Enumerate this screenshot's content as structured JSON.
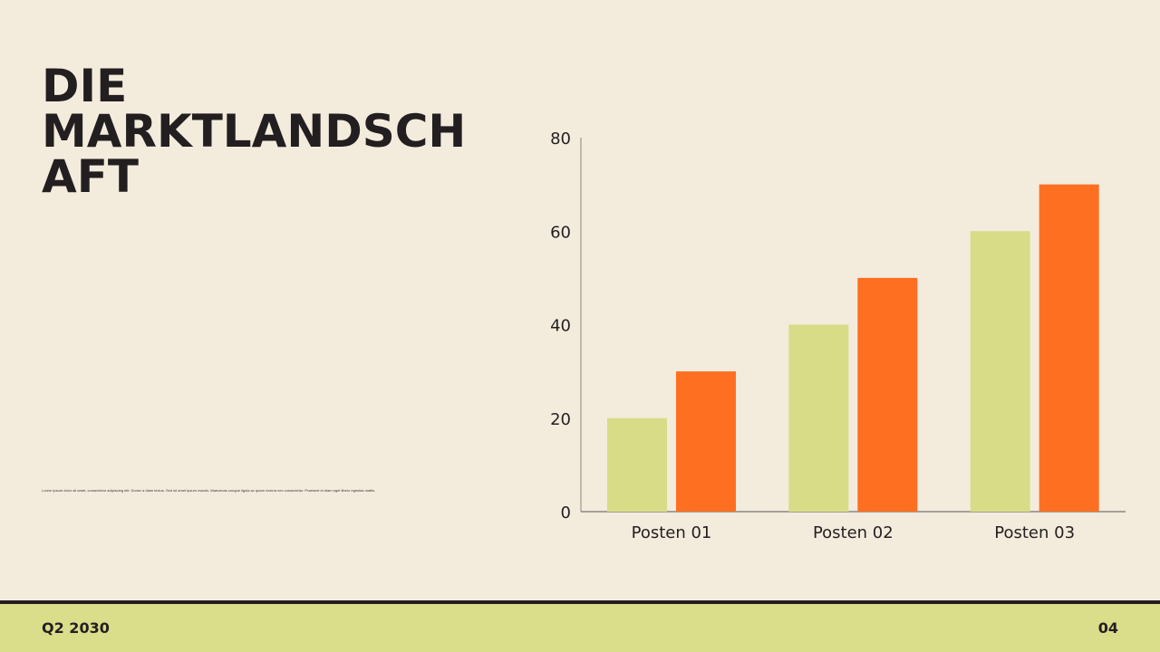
{
  "slide": {
    "title_line1": "DIE MARKTLANDSCH",
    "title_line2": "AFT",
    "body": "Lorem ipsum dolor sit amet, consectetur adipiscing elit. Donec a diam lectus. Sed sit amet ipsum mauris. Maecenas congue ligula ac quam viverra nec consectetur. Praesent et diam eget libero egestas mattis."
  },
  "footer": {
    "left": "Q2 2030",
    "right": "04"
  },
  "colors": {
    "series1": "#d8dc87",
    "series2": "#ff6f22",
    "axis": "#8a8682",
    "background": "#f3ecdd",
    "footer_band": "#dadd8a"
  },
  "chart_data": {
    "type": "bar",
    "categories": [
      "Posten 01",
      "Posten 02",
      "Posten 03"
    ],
    "series": [
      {
        "values": [
          20,
          40,
          60
        ]
      },
      {
        "values": [
          30,
          50,
          70
        ]
      }
    ],
    "ylim": [
      0,
      80
    ],
    "yticks": [
      0,
      20,
      40,
      60,
      80
    ],
    "grid": false,
    "legend": "none"
  }
}
